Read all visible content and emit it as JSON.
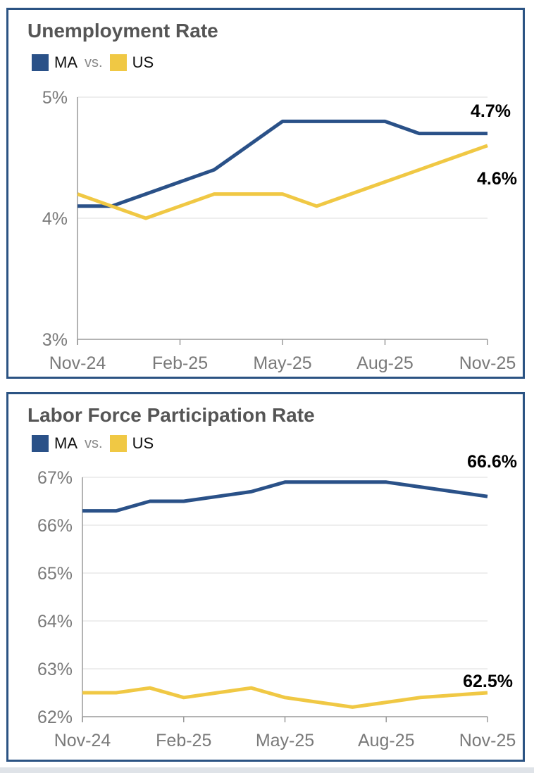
{
  "chart_data": [
    {
      "type": "line",
      "title": "Unemployment Rate",
      "legend": {
        "series_a": "MA",
        "separator": "vs.",
        "series_b": "US"
      },
      "x_tick_labels": [
        "Nov-24",
        "Feb-25",
        "May-25",
        "Aug-25",
        "Nov-25"
      ],
      "y_tick_labels": [
        "3%",
        "4%",
        "5%"
      ],
      "ylim": [
        3,
        5
      ],
      "y_ticks": [
        3,
        4,
        5
      ],
      "months": 13,
      "x_tick_months": [
        0,
        3,
        6,
        9,
        12
      ],
      "series": [
        {
          "name": "MA",
          "color": "#2a5188",
          "values": [
            4.1,
            4.1,
            4.2,
            4.3,
            4.4,
            4.6,
            4.8,
            4.8,
            4.8,
            4.8,
            4.7,
            4.7,
            4.7
          ]
        },
        {
          "name": "US",
          "color": "#f0c844",
          "values": [
            4.2,
            4.1,
            4.0,
            4.1,
            4.2,
            4.2,
            4.2,
            4.1,
            4.2,
            4.3,
            4.4,
            4.5,
            4.6
          ]
        }
      ],
      "end_labels": [
        "4.7%",
        "4.6%"
      ]
    },
    {
      "type": "line",
      "title": "Labor Force Participation Rate",
      "legend": {
        "series_a": "MA",
        "separator": "vs.",
        "series_b": "US"
      },
      "x_tick_labels": [
        "Nov-24",
        "Feb-25",
        "May-25",
        "Aug-25",
        "Nov-25"
      ],
      "y_tick_labels": [
        "62%",
        "63%",
        "64%",
        "65%",
        "66%",
        "67%"
      ],
      "ylim": [
        62,
        67
      ],
      "y_ticks": [
        62,
        63,
        64,
        65,
        66,
        67
      ],
      "months": 13,
      "x_tick_months": [
        0,
        3,
        6,
        9,
        12
      ],
      "series": [
        {
          "name": "MA",
          "color": "#2a5188",
          "values": [
            66.3,
            66.3,
            66.5,
            66.5,
            66.6,
            66.7,
            66.9,
            66.9,
            66.9,
            66.9,
            66.8,
            66.7,
            66.6
          ]
        },
        {
          "name": "US",
          "color": "#f0c844",
          "values": [
            62.5,
            62.5,
            62.6,
            62.4,
            62.5,
            62.6,
            62.4,
            62.3,
            62.2,
            62.3,
            62.4,
            62.45,
            62.5
          ]
        }
      ],
      "end_labels": [
        "66.6%",
        "62.5%"
      ]
    }
  ]
}
